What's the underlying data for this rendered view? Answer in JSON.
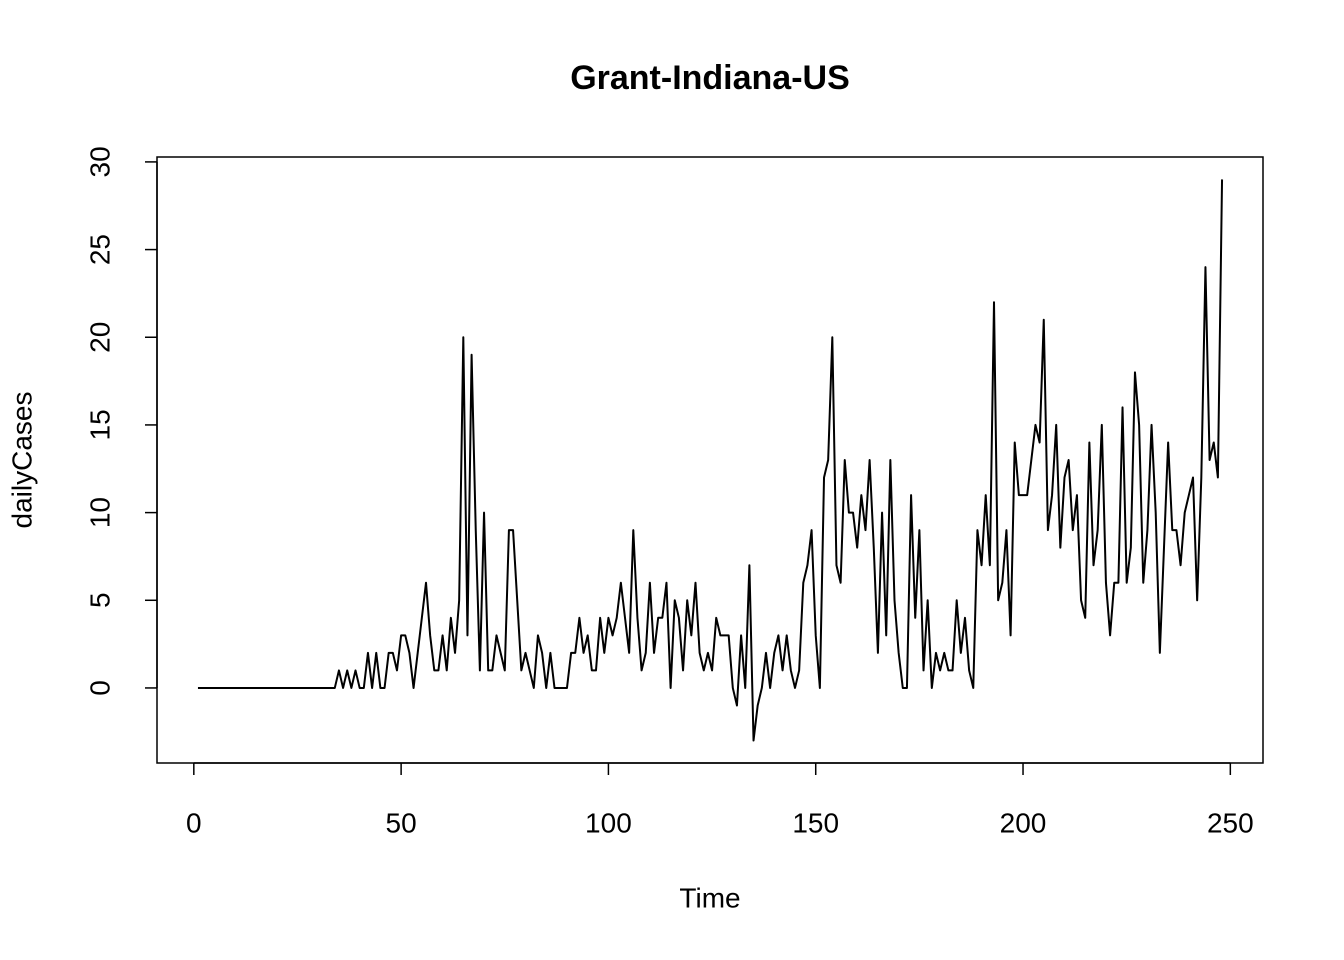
{
  "chart_data": {
    "type": "line",
    "title": "Grant-Indiana-US",
    "xlabel": "Time",
    "ylabel": "dailyCases",
    "color": "#000000",
    "x": [
      1,
      2,
      3,
      4,
      5,
      6,
      7,
      8,
      9,
      10,
      11,
      12,
      13,
      14,
      15,
      16,
      17,
      18,
      19,
      20,
      21,
      22,
      23,
      24,
      25,
      26,
      27,
      28,
      29,
      30,
      31,
      32,
      33,
      34,
      35,
      36,
      37,
      38,
      39,
      40,
      41,
      42,
      43,
      44,
      45,
      46,
      47,
      48,
      49,
      50,
      51,
      52,
      53,
      54,
      55,
      56,
      57,
      58,
      59,
      60,
      61,
      62,
      63,
      64,
      65,
      66,
      67,
      68,
      69,
      70,
      71,
      72,
      73,
      74,
      75,
      76,
      77,
      78,
      79,
      80,
      81,
      82,
      83,
      84,
      85,
      86,
      87,
      88,
      89,
      90,
      91,
      92,
      93,
      94,
      95,
      96,
      97,
      98,
      99,
      100,
      101,
      102,
      103,
      104,
      105,
      106,
      107,
      108,
      109,
      110,
      111,
      112,
      113,
      114,
      115,
      116,
      117,
      118,
      119,
      120,
      121,
      122,
      123,
      124,
      125,
      126,
      127,
      128,
      129,
      130,
      131,
      132,
      133,
      134,
      135,
      136,
      137,
      138,
      139,
      140,
      141,
      142,
      143,
      144,
      145,
      146,
      147,
      148,
      149,
      150,
      151,
      152,
      153,
      154,
      155,
      156,
      157,
      158,
      159,
      160,
      161,
      162,
      163,
      164,
      165,
      166,
      167,
      168,
      169,
      170,
      171,
      172,
      173,
      174,
      175,
      176,
      177,
      178,
      179,
      180,
      181,
      182,
      183,
      184,
      185,
      186,
      187,
      188,
      189,
      190,
      191,
      192,
      193,
      194,
      195,
      196,
      197,
      198,
      199,
      200,
      201,
      202,
      203,
      204,
      205,
      206,
      207,
      208,
      209,
      210,
      211,
      212,
      213,
      214,
      215,
      216,
      217,
      218,
      219,
      220,
      221,
      222,
      223,
      224,
      225,
      226,
      227,
      228,
      229,
      230,
      231,
      232,
      233,
      234,
      235,
      236,
      237,
      238,
      239,
      240,
      241,
      242,
      243,
      244,
      245,
      246,
      247,
      248
    ],
    "values": [
      0,
      0,
      0,
      0,
      0,
      0,
      0,
      0,
      0,
      0,
      0,
      0,
      0,
      0,
      0,
      0,
      0,
      0,
      0,
      0,
      0,
      0,
      0,
      0,
      0,
      0,
      0,
      0,
      0,
      0,
      0,
      0,
      0,
      0,
      1,
      0,
      1,
      0,
      1,
      0,
      0,
      2,
      0,
      2,
      0,
      0,
      2,
      2,
      1,
      3,
      3,
      2,
      0,
      2,
      4,
      6,
      3,
      1,
      1,
      3,
      1,
      4,
      2,
      5,
      20,
      3,
      19,
      9,
      1,
      10,
      1,
      1,
      3,
      2,
      1,
      9,
      9,
      5,
      1,
      2,
      1,
      0,
      3,
      2,
      0,
      2,
      0,
      0,
      0,
      0,
      2,
      2,
      4,
      2,
      3,
      1,
      1,
      4,
      2,
      4,
      3,
      4,
      6,
      4,
      2,
      9,
      4,
      1,
      2,
      6,
      2,
      4,
      4,
      6,
      0,
      5,
      4,
      1,
      5,
      3,
      6,
      2,
      1,
      2,
      1,
      4,
      3,
      3,
      3,
      0,
      -1,
      3,
      0,
      7,
      -3,
      -1,
      0,
      2,
      0,
      2,
      3,
      1,
      3,
      1,
      0,
      1,
      6,
      7,
      9,
      3,
      0,
      12,
      13,
      20,
      7,
      6,
      13,
      10,
      10,
      8,
      11,
      9,
      13,
      8,
      2,
      10,
      3,
      13,
      5,
      2,
      0,
      0,
      11,
      4,
      9,
      1,
      5,
      0,
      2,
      1,
      2,
      1,
      1,
      5,
      2,
      4,
      1,
      0,
      9,
      7,
      11,
      7,
      22,
      5,
      6,
      9,
      3,
      14,
      11,
      11,
      11,
      13,
      15,
      14,
      21,
      9,
      11,
      15,
      8,
      12,
      13,
      9,
      11,
      5,
      4,
      14,
      7,
      9,
      15,
      6,
      3,
      6,
      6,
      16,
      6,
      8,
      18,
      15,
      6,
      9,
      15,
      10,
      2,
      8,
      14,
      9,
      9,
      7,
      10,
      11,
      12,
      5,
      12,
      24,
      13,
      14,
      12,
      29
    ],
    "xlim": [
      -8.88,
      257.88
    ],
    "ylim": [
      -4.28,
      30.28
    ],
    "xticks": [
      0,
      50,
      100,
      150,
      200,
      250
    ],
    "yticks": [
      0,
      5,
      10,
      15,
      20,
      25,
      30
    ]
  }
}
